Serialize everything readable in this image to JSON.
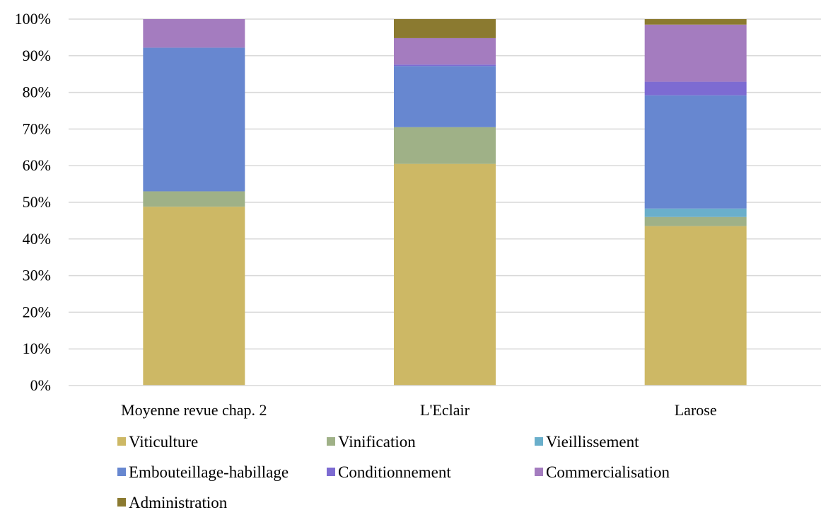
{
  "chart_data": {
    "type": "bar",
    "stacked": true,
    "percent": true,
    "categories": [
      "Moyenne revue chap. 2",
      "L'Eclair",
      "Larose"
    ],
    "yticks": [
      "0%",
      "10%",
      "20%",
      "30%",
      "40%",
      "50%",
      "60%",
      "70%",
      "80%",
      "90%",
      "100%"
    ],
    "ylim": [
      0,
      100
    ],
    "grid": true,
    "legend_position": "bottom",
    "series": [
      {
        "name": "Viticulture",
        "color": "#CDB865",
        "values": [
          48.8,
          60.5,
          43.5
        ]
      },
      {
        "name": "Vinification",
        "color": "#9FB187",
        "values": [
          4.2,
          10.0,
          2.5
        ]
      },
      {
        "name": "Vieillissement",
        "color": "#6AAFCB",
        "values": [
          0,
          0,
          2.3
        ]
      },
      {
        "name": "Embouteillage-habillage",
        "color": "#6787D0",
        "values": [
          39.2,
          16.7,
          30.9
        ]
      },
      {
        "name": "Conditionnement",
        "color": "#7D6BD2",
        "values": [
          0,
          0.4,
          3.7
        ]
      },
      {
        "name": "Commercialisation",
        "color": "#A47CBF",
        "values": [
          7.8,
          7.2,
          15.6
        ]
      },
      {
        "name": "Administration",
        "color": "#8B7A30",
        "values": [
          0,
          5.2,
          1.5
        ]
      }
    ]
  }
}
